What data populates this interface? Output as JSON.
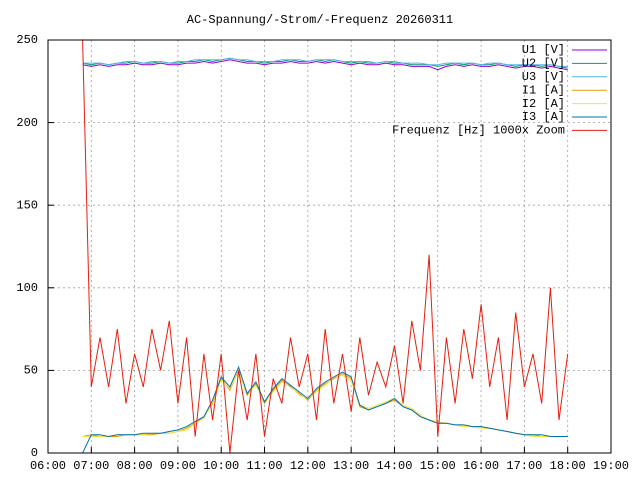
{
  "chart_data": {
    "type": "line",
    "title": "AC-Spannung/-Strom/-Frequenz 20260311",
    "x": [
      6.8,
      7,
      7.2,
      7.4,
      7.6,
      7.8,
      8,
      8.2,
      8.4,
      8.6,
      8.8,
      9,
      9.2,
      9.4,
      9.6,
      9.8,
      10,
      10.2,
      10.4,
      10.6,
      10.8,
      11,
      11.2,
      11.4,
      11.6,
      11.8,
      12,
      12.2,
      12.4,
      12.6,
      12.8,
      13,
      13.2,
      13.4,
      13.6,
      13.8,
      14,
      14.2,
      14.4,
      14.6,
      14.8,
      15,
      15.2,
      15.4,
      15.6,
      15.8,
      16,
      16.2,
      16.4,
      16.6,
      16.8,
      17,
      17.2,
      17.4,
      17.6,
      17.8,
      18
    ],
    "xlim": [
      6,
      19
    ],
    "xticks": [
      {
        "value": 6,
        "label": "06:00"
      },
      {
        "value": 7,
        "label": "07:00"
      },
      {
        "value": 8,
        "label": "08:00"
      },
      {
        "value": 9,
        "label": "09:00"
      },
      {
        "value": 10,
        "label": "10:00"
      },
      {
        "value": 11,
        "label": "11:00"
      },
      {
        "value": 12,
        "label": "12:00"
      },
      {
        "value": 13,
        "label": "13:00"
      },
      {
        "value": 14,
        "label": "14:00"
      },
      {
        "value": 15,
        "label": "15:00"
      },
      {
        "value": 16,
        "label": "16:00"
      },
      {
        "value": 17,
        "label": "17:00"
      },
      {
        "value": 18,
        "label": "18:00"
      },
      {
        "value": 19,
        "label": "19:00"
      }
    ],
    "ylim": [
      0,
      250
    ],
    "yticks": [
      0,
      50,
      100,
      150,
      200,
      250
    ],
    "grid": true,
    "legend": "top-right",
    "series": [
      {
        "name": "U1 [V]",
        "color": "#9400d3",
        "values": [
          235,
          234,
          235,
          234,
          235,
          235,
          236,
          235,
          235,
          236,
          235,
          235,
          236,
          236,
          237,
          236,
          237,
          238,
          237,
          236,
          236,
          235,
          236,
          236,
          237,
          236,
          236,
          237,
          236,
          237,
          236,
          235,
          236,
          235,
          235,
          236,
          235,
          235,
          234,
          234,
          234,
          232,
          234,
          235,
          234,
          235,
          234,
          234,
          235,
          234,
          233,
          234,
          234,
          233,
          234,
          233,
          232
        ]
      },
      {
        "name": "U2 [V]",
        "color": "#009e73",
        "values": [
          236,
          235,
          236,
          235,
          236,
          236,
          237,
          236,
          236,
          237,
          236,
          236,
          237,
          237,
          238,
          237,
          238,
          239,
          238,
          237,
          237,
          236,
          237,
          237,
          238,
          237,
          237,
          238,
          237,
          238,
          237,
          236,
          237,
          236,
          236,
          237,
          236,
          236,
          235,
          235,
          235,
          234,
          235,
          236,
          235,
          236,
          235,
          235,
          236,
          235,
          234,
          235,
          235,
          234,
          235,
          234,
          233
        ]
      },
      {
        "name": "U3 [V]",
        "color": "#56b4e9",
        "values": [
          236,
          236,
          236,
          235,
          236,
          237,
          237,
          236,
          237,
          237,
          236,
          237,
          237,
          238,
          238,
          238,
          238,
          239,
          238,
          238,
          237,
          237,
          237,
          238,
          238,
          238,
          237,
          238,
          238,
          238,
          237,
          237,
          237,
          237,
          236,
          237,
          237,
          236,
          236,
          236,
          235,
          235,
          236,
          236,
          236,
          236,
          235,
          236,
          236,
          235,
          235,
          235,
          235,
          235,
          235,
          234,
          234
        ]
      },
      {
        "name": "I1 [A]",
        "color": "#e69f00",
        "values": [
          10,
          11,
          10,
          10,
          10,
          11,
          11,
          11,
          11,
          12,
          12,
          13,
          15,
          18,
          22,
          30,
          45,
          38,
          50,
          35,
          42,
          30,
          38,
          44,
          40,
          36,
          32,
          38,
          42,
          45,
          48,
          45,
          28,
          26,
          28,
          30,
          32,
          28,
          26,
          22,
          20,
          18,
          18,
          17,
          17,
          16,
          16,
          15,
          14,
          13,
          12,
          11,
          11,
          10,
          10,
          10,
          10
        ]
      },
      {
        "name": "I2 [A]",
        "color": "#f0e442",
        "values": [
          10,
          10,
          10,
          10,
          11,
          11,
          11,
          11,
          12,
          12,
          12,
          13,
          14,
          18,
          21,
          31,
          44,
          39,
          49,
          36,
          41,
          31,
          37,
          43,
          41,
          35,
          33,
          37,
          41,
          46,
          47,
          44,
          29,
          27,
          29,
          31,
          33,
          29,
          27,
          23,
          20,
          19,
          18,
          17,
          16,
          16,
          15,
          15,
          14,
          13,
          12,
          11,
          10,
          10,
          10,
          10,
          10
        ]
      },
      {
        "name": "I3 [A]",
        "color": "#0072b2",
        "values": [
          0,
          11,
          11,
          10,
          11,
          11,
          11,
          12,
          12,
          12,
          13,
          14,
          16,
          19,
          22,
          32,
          46,
          40,
          52,
          36,
          43,
          31,
          39,
          45,
          41,
          37,
          33,
          39,
          43,
          46,
          49,
          46,
          29,
          26,
          28,
          30,
          33,
          28,
          26,
          22,
          20,
          18,
          18,
          17,
          17,
          16,
          16,
          15,
          14,
          13,
          12,
          11,
          11,
          11,
          10,
          10,
          10
        ]
      },
      {
        "name": "Frequenz [Hz] 1000x Zoom",
        "color": "#e51e10",
        "values": [
          250,
          40,
          70,
          40,
          75,
          30,
          60,
          40,
          75,
          50,
          80,
          30,
          70,
          10,
          60,
          20,
          60,
          0,
          50,
          20,
          60,
          10,
          45,
          30,
          70,
          40,
          60,
          20,
          75,
          30,
          60,
          25,
          70,
          35,
          55,
          40,
          65,
          30,
          80,
          50,
          120,
          10,
          70,
          30,
          75,
          45,
          90,
          40,
          70,
          20,
          85,
          40,
          60,
          30,
          100,
          20,
          60
        ]
      }
    ]
  }
}
